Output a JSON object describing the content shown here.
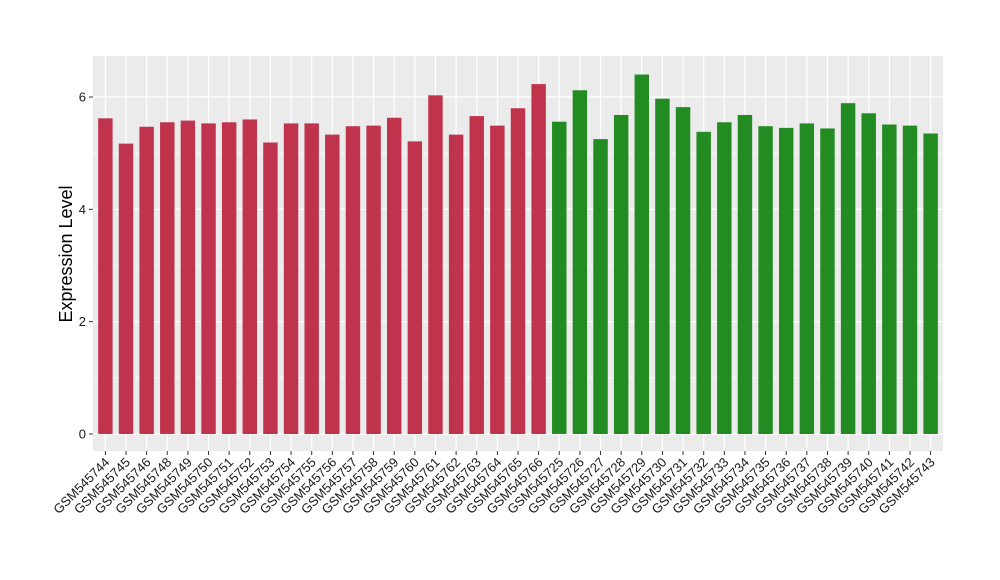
{
  "chart_data": {
    "type": "bar",
    "title": "",
    "xlabel": "",
    "ylabel": "Expression Level",
    "ylim": [
      0,
      6.6
    ],
    "yticks": [
      0,
      2,
      4,
      6
    ],
    "grid": true,
    "legend": "none",
    "categories": [
      "GSM545744",
      "GSM545745",
      "GSM545746",
      "GSM545748",
      "GSM545749",
      "GSM545750",
      "GSM545751",
      "GSM545752",
      "GSM545753",
      "GSM545754",
      "GSM545755",
      "GSM545756",
      "GSM545757",
      "GSM545758",
      "GSM545759",
      "GSM545760",
      "GSM545761",
      "GSM545762",
      "GSM545763",
      "GSM545764",
      "GSM545765",
      "GSM545766",
      "GSM545725",
      "GSM545726",
      "GSM545727",
      "GSM545728",
      "GSM545729",
      "GSM545730",
      "GSM545731",
      "GSM545732",
      "GSM545733",
      "GSM545734",
      "GSM545735",
      "GSM545736",
      "GSM545737",
      "GSM545738",
      "GSM545739",
      "GSM545740",
      "GSM545741",
      "GSM545742",
      "GSM545743"
    ],
    "values": [
      5.62,
      5.17,
      5.47,
      5.55,
      5.58,
      5.53,
      5.55,
      5.6,
      5.19,
      5.53,
      5.53,
      5.33,
      5.48,
      5.49,
      5.63,
      5.21,
      6.03,
      5.33,
      5.66,
      5.49,
      5.8,
      6.23,
      5.56,
      6.12,
      5.25,
      5.68,
      6.4,
      5.97,
      5.82,
      5.38,
      5.55,
      5.68,
      5.48,
      5.45,
      5.53,
      5.44,
      5.89,
      5.71,
      5.51,
      5.49,
      5.35
    ],
    "groups": [
      0,
      0,
      0,
      0,
      0,
      0,
      0,
      0,
      0,
      0,
      0,
      0,
      0,
      0,
      0,
      0,
      0,
      0,
      0,
      0,
      0,
      0,
      1,
      1,
      1,
      1,
      1,
      1,
      1,
      1,
      1,
      1,
      1,
      1,
      1,
      1,
      1,
      1,
      1,
      1,
      1
    ],
    "group_colors": [
      "#c0334d",
      "#228b22"
    ]
  },
  "colors": {
    "panel_background": "#ebebeb",
    "grid": "#ffffff",
    "tick": "#333333"
  }
}
